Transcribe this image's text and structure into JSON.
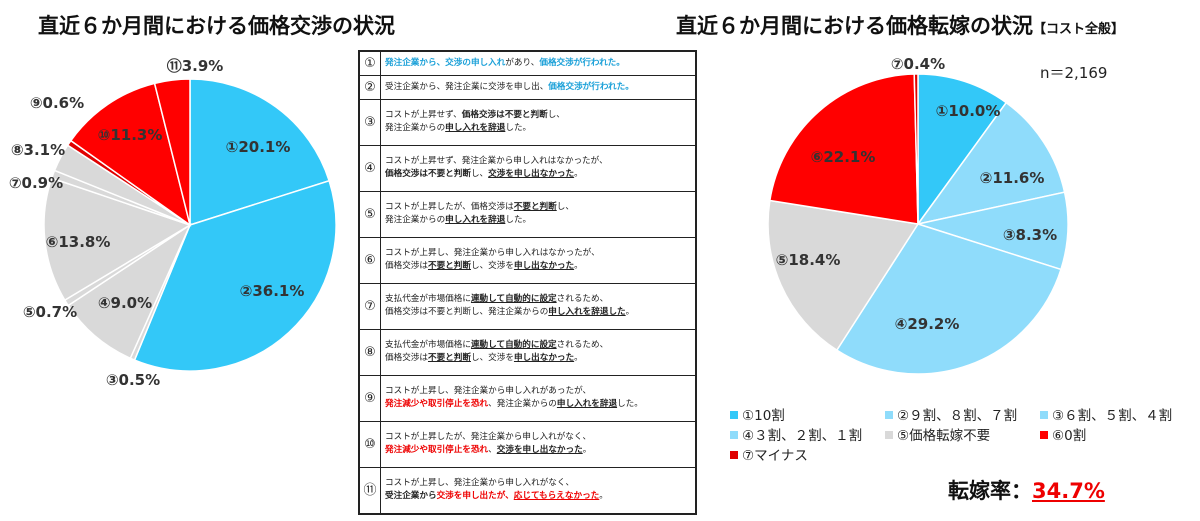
{
  "left_title": "直近６か月間における価格交渉の状況",
  "right_title": "直近６か月間における価格転嫁の状況",
  "right_title_suffix": "【コスト全般】",
  "n_label": "n＝2,169",
  "rate_label": "転嫁率：",
  "rate_value": "34.7%",
  "chart_data": [
    {
      "type": "pie",
      "start": "top",
      "direction": "clockwise",
      "labels": [
        "①",
        "②",
        "③",
        "④",
        "⑤",
        "⑥",
        "⑦",
        "⑧",
        "⑨",
        "⑩",
        "⑪"
      ],
      "values": [
        20.1,
        36.1,
        0.5,
        9.0,
        0.7,
        13.8,
        0.9,
        3.1,
        0.6,
        11.3,
        3.9
      ],
      "data_labels": [
        "①20.1%",
        "②36.1%",
        "③0.5%",
        "④9.0%",
        "⑤0.7%",
        "⑥13.8%",
        "⑦0.9%",
        "⑧3.1%",
        "⑨0.6%",
        "⑩11.3%",
        "⑪3.9%"
      ],
      "colors": [
        "#33c8f8",
        "#33c8f8",
        "#d9d9d9",
        "#d9d9d9",
        "#d9d9d9",
        "#d9d9d9",
        "#d9d9d9",
        "#d9d9d9",
        "#e00000",
        "#ff0000",
        "#ff0000"
      ]
    },
    {
      "type": "pie",
      "start": "top",
      "direction": "clockwise",
      "labels": [
        "①10割",
        "②９割、８割、７割",
        "③６割、５割、４割",
        "④３割、２割、１割",
        "⑤価格転嫁不要",
        "⑥0割",
        "⑦マイナス"
      ],
      "values": [
        10.0,
        11.6,
        8.3,
        29.2,
        18.4,
        22.1,
        0.4
      ],
      "data_labels": [
        "①10.0%",
        "②11.6%",
        "③8.3%",
        "④29.2%",
        "⑤18.4%",
        "⑥22.1%",
        "⑦0.4%"
      ],
      "colors": [
        "#33c8f8",
        "#8fdcfb",
        "#8fdcfb",
        "#8fdcfb",
        "#d9d9d9",
        "#ff0000",
        "#e00000"
      ],
      "legend": "bottom"
    }
  ],
  "table": [
    {
      "num": "①",
      "lines": [
        [
          {
            "t": "発注企業から、交渉の申し入れ",
            "s": "blue"
          },
          {
            "t": "があり、",
            "s": ""
          },
          {
            "t": "価格交渉が行われた。",
            "s": "blue"
          }
        ]
      ]
    },
    {
      "num": "②",
      "lines": [
        [
          {
            "t": "受注企業から、発注企業に交渉を申し出、",
            "s": ""
          },
          {
            "t": "価格交渉が行われた。",
            "s": "blue"
          }
        ]
      ]
    },
    {
      "num": "③",
      "lines": [
        [
          {
            "t": "コストが上昇せず、",
            "s": ""
          },
          {
            "t": "価格交渉は不要と判断",
            "s": "b"
          },
          {
            "t": "し、",
            "s": ""
          }
        ],
        [
          {
            "t": "発注企業からの",
            "s": ""
          },
          {
            "t": "申し入れを辞退",
            "s": "u"
          },
          {
            "t": "した。",
            "s": ""
          }
        ]
      ]
    },
    {
      "num": "④",
      "lines": [
        [
          {
            "t": "コストが上昇せず、発注企業から申し入れはなかったが、",
            "s": ""
          }
        ],
        [
          {
            "t": "価格交渉は不要と判断",
            "s": "b"
          },
          {
            "t": "し、",
            "s": ""
          },
          {
            "t": "交渉を申し出なかった",
            "s": "u"
          },
          {
            "t": "。",
            "s": ""
          }
        ]
      ]
    },
    {
      "num": "⑤",
      "lines": [
        [
          {
            "t": "コストが上昇したが、価格交渉は",
            "s": ""
          },
          {
            "t": "不要と判断",
            "s": "u"
          },
          {
            "t": "し、",
            "s": ""
          }
        ],
        [
          {
            "t": "発注企業からの",
            "s": ""
          },
          {
            "t": "申し入れを辞退",
            "s": "u"
          },
          {
            "t": "した。",
            "s": ""
          }
        ]
      ]
    },
    {
      "num": "⑥",
      "lines": [
        [
          {
            "t": "コストが上昇し、発注企業から申し入れはなかったが、",
            "s": ""
          }
        ],
        [
          {
            "t": "価格交渉は",
            "s": ""
          },
          {
            "t": "不要と判断",
            "s": "u"
          },
          {
            "t": "し、交渉を",
            "s": ""
          },
          {
            "t": "申し出なかった",
            "s": "u"
          },
          {
            "t": "。",
            "s": ""
          }
        ]
      ]
    },
    {
      "num": "⑦",
      "lines": [
        [
          {
            "t": "支払代金が市場価格に",
            "s": ""
          },
          {
            "t": "連動して自動的に設定",
            "s": "u"
          },
          {
            "t": "されるため、",
            "s": ""
          }
        ],
        [
          {
            "t": "価格交渉は不要と判断し、発注企業からの",
            "s": ""
          },
          {
            "t": "申し入れを辞退した",
            "s": "u"
          },
          {
            "t": "。",
            "s": ""
          }
        ]
      ]
    },
    {
      "num": "⑧",
      "lines": [
        [
          {
            "t": "支払代金が市場価格に",
            "s": ""
          },
          {
            "t": "連動して自動的に設定",
            "s": "u"
          },
          {
            "t": "されるため、",
            "s": ""
          }
        ],
        [
          {
            "t": "価格交渉は",
            "s": ""
          },
          {
            "t": "不要と判断",
            "s": "u"
          },
          {
            "t": "し、交渉を",
            "s": ""
          },
          {
            "t": "申し出なかった",
            "s": "u"
          },
          {
            "t": "。",
            "s": ""
          }
        ]
      ]
    },
    {
      "num": "⑨",
      "lines": [
        [
          {
            "t": "コストが上昇し、発注企業から申し入れがあったが、",
            "s": ""
          }
        ],
        [
          {
            "t": "発注減少や取引停止を恐れ",
            "s": "red"
          },
          {
            "t": "、発注企業からの",
            "s": ""
          },
          {
            "t": "申し入れを辞退",
            "s": "u"
          },
          {
            "t": "した。",
            "s": ""
          }
        ]
      ]
    },
    {
      "num": "⑩",
      "lines": [
        [
          {
            "t": "コストが上昇したが、発注企業から申し入れがなく、",
            "s": ""
          }
        ],
        [
          {
            "t": "発注減少や取引停止を恐れ",
            "s": "red"
          },
          {
            "t": "、",
            "s": ""
          },
          {
            "t": "交渉を申し出なかった",
            "s": "u"
          },
          {
            "t": "。",
            "s": ""
          }
        ]
      ]
    },
    {
      "num": "⑪",
      "lines": [
        [
          {
            "t": "コストが上昇し、発注企業から申し入れがなく、",
            "s": ""
          }
        ],
        [
          {
            "t": "受注企業から",
            "s": "b"
          },
          {
            "t": "交渉を申し出たが、",
            "s": "red"
          },
          {
            "t": "応じてもらえなかった",
            "s": "redu"
          },
          {
            "t": "。",
            "s": ""
          }
        ]
      ]
    }
  ]
}
